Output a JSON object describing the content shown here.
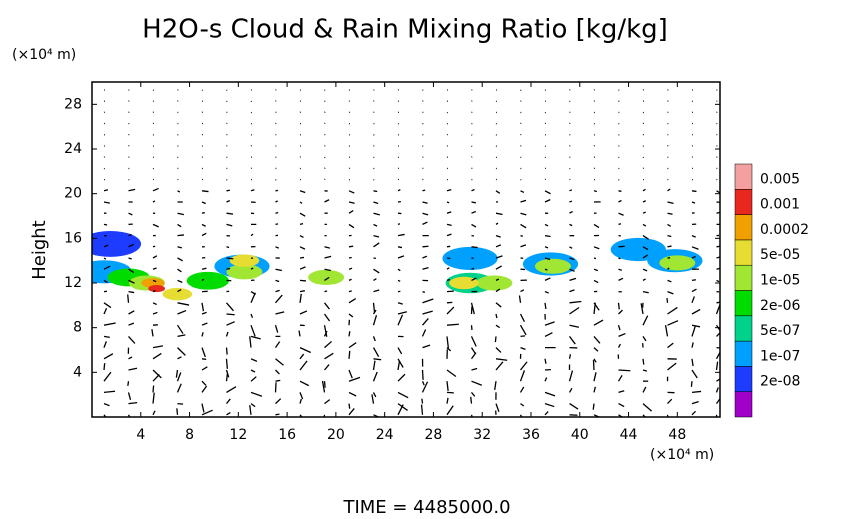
{
  "chart_data": {
    "type": "shaded-contour",
    "title": "H2O-s Cloud & Rain Mixing Ratio [kg/kg]",
    "y_axis_label": "Height",
    "y_unit": "(×10⁴ m)",
    "x_unit": "(×10⁴ m)",
    "footer": "TIME = 4485000.0",
    "xlim": [
      0,
      51.5
    ],
    "ylim": [
      0,
      30
    ],
    "xticks": [
      4,
      8,
      12,
      16,
      20,
      24,
      28,
      32,
      36,
      40,
      44,
      48
    ],
    "yticks": [
      4,
      8,
      12,
      16,
      20,
      24,
      28
    ],
    "levels": [
      {
        "value": 2e-08,
        "label": "2e-08"
      },
      {
        "value": 1e-07,
        "label": "1e-07"
      },
      {
        "value": 5e-07,
        "label": "5e-07"
      },
      {
        "value": 2e-06,
        "label": "2e-06"
      },
      {
        "value": 1e-05,
        "label": "1e-05"
      },
      {
        "value": 5e-05,
        "label": "5e-05"
      },
      0.0002,
      0.001,
      0.005
    ],
    "colors": [
      "#a000c8",
      "#1e3cff",
      "#00a0ff",
      "#00d28c",
      "#00dc00",
      "#a0e632",
      "#e6dc32",
      "#f0a000",
      "#e8281e",
      "#f4a0a0"
    ],
    "cells": [
      {
        "x": 1.5,
        "y": 15.5,
        "value": 2e-08
      },
      {
        "x": 1,
        "y": 13,
        "value": 1e-07
      },
      {
        "x": 3,
        "y": 12.5,
        "value": 2e-06
      },
      {
        "x": 4.5,
        "y": 12,
        "value": 1e-05
      },
      {
        "x": 7,
        "y": 11,
        "value": 5e-05
      },
      {
        "x": 5,
        "y": 12,
        "value": 0.0002
      },
      {
        "x": 5.3,
        "y": 11.5,
        "value": 0.001
      },
      {
        "x": 12.3,
        "y": 13.5,
        "value": 1e-07
      },
      {
        "x": 12.5,
        "y": 13,
        "value": 1e-05
      },
      {
        "x": 12.5,
        "y": 14,
        "value": 5e-05
      },
      {
        "x": 9.5,
        "y": 12.2,
        "value": 2e-06
      },
      {
        "x": 19.2,
        "y": 12.5,
        "value": 1e-05
      },
      {
        "x": 31,
        "y": 14.2,
        "value": 1e-07
      },
      {
        "x": 31,
        "y": 12,
        "value": 1e-06
      },
      {
        "x": 33,
        "y": 12,
        "value": 1e-05
      },
      {
        "x": 30.5,
        "y": 12,
        "value": 5e-05
      },
      {
        "x": 37.6,
        "y": 13.7,
        "value": 1e-07
      },
      {
        "x": 37.8,
        "y": 13.5,
        "value": 1e-05
      },
      {
        "x": 44.8,
        "y": 15,
        "value": 1e-07
      },
      {
        "x": 47.8,
        "y": 14,
        "value": 1e-07
      },
      {
        "x": 48,
        "y": 13.8,
        "value": 1e-05
      }
    ]
  }
}
